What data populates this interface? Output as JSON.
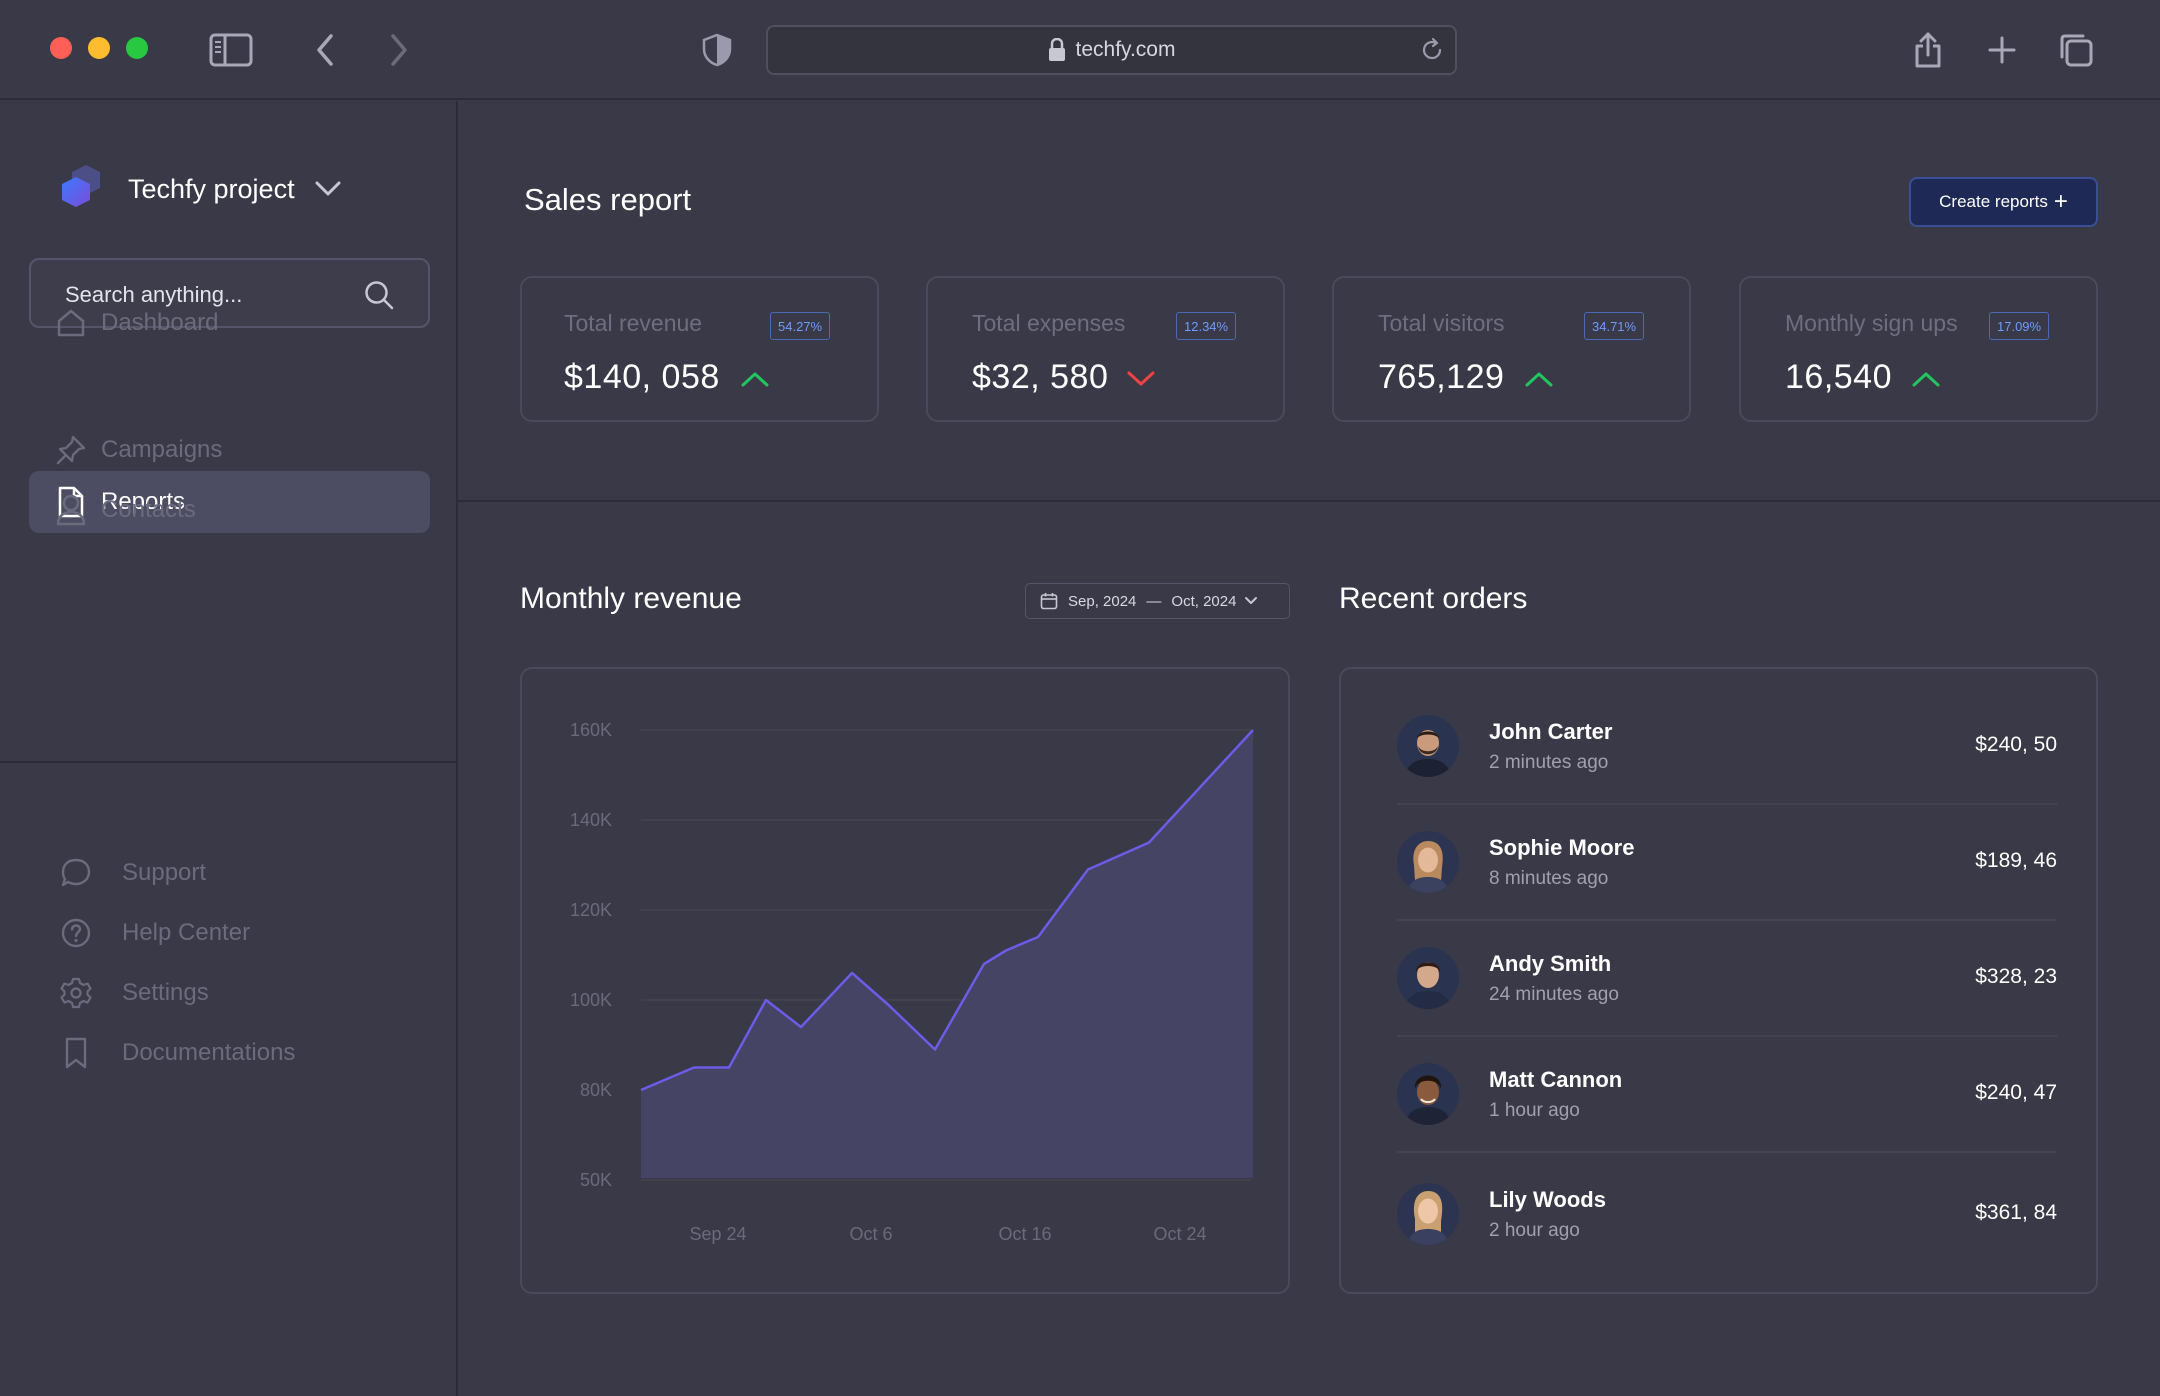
{
  "browser": {
    "url": "techfy.com"
  },
  "sidebar": {
    "project_name": "Techfy project",
    "search_placeholder": "Search anything...",
    "nav": [
      {
        "label": "Dashboard",
        "icon": "home-icon",
        "active": false
      },
      {
        "label": "Reports",
        "icon": "document-icon",
        "active": true
      },
      {
        "label": "Campaigns",
        "icon": "pin-icon",
        "active": false
      },
      {
        "label": "Contacts",
        "icon": "user-icon",
        "active": false
      }
    ],
    "footer": [
      {
        "label": "Support",
        "icon": "chat-icon"
      },
      {
        "label": "Help Center",
        "icon": "help-icon"
      },
      {
        "label": "Settings",
        "icon": "gear-icon"
      },
      {
        "label": "Documentations",
        "icon": "bookmark-icon"
      }
    ]
  },
  "header": {
    "title": "Sales report",
    "create_button": "Create reports"
  },
  "stats": [
    {
      "label": "Total revenue",
      "value": "$140, 058",
      "badge": "54.27%",
      "trend": "up"
    },
    {
      "label": "Total expenses",
      "value": "$32, 580",
      "badge": "12.34%",
      "trend": "down"
    },
    {
      "label": "Total visitors",
      "value": "765,129",
      "badge": "34.71%",
      "trend": "up"
    },
    {
      "label": "Monthly sign ups",
      "value": "16,540",
      "badge": "17.09%",
      "trend": "up"
    }
  ],
  "colors": {
    "up": "#22c55e",
    "down": "#ef4444",
    "accent": "#6c5ce7",
    "badge": "#6f9bff"
  },
  "revenue": {
    "title": "Monthly revenue",
    "date_from": "Sep, 2024",
    "date_sep": "—",
    "date_to": "Oct, 2024"
  },
  "chart_data": {
    "type": "area",
    "title": "Monthly revenue",
    "y_ticks": [
      "160K",
      "140K",
      "120K",
      "100K",
      "80K",
      "50K"
    ],
    "x_ticks": [
      "Sep 24",
      "Oct 6",
      "Oct 16",
      "Oct 24"
    ],
    "series": [
      {
        "values": [
          80,
          85,
          85,
          100,
          94,
          106,
          99,
          89,
          108,
          111,
          114,
          129,
          135,
          160
        ]
      }
    ],
    "grid": true
  },
  "orders": {
    "title": "Recent orders",
    "items": [
      {
        "name": "John Carter",
        "time": "2 minutes ago",
        "amount": "$240, 50"
      },
      {
        "name": "Sophie Moore",
        "time": "8 minutes ago",
        "amount": "$189, 46"
      },
      {
        "name": "Andy Smith",
        "time": "24 minutes ago",
        "amount": "$328, 23"
      },
      {
        "name": "Matt Cannon",
        "time": "1 hour ago",
        "amount": "$240, 47"
      },
      {
        "name": "Lily Woods",
        "time": "2 hour ago",
        "amount": "$361, 84"
      }
    ]
  }
}
